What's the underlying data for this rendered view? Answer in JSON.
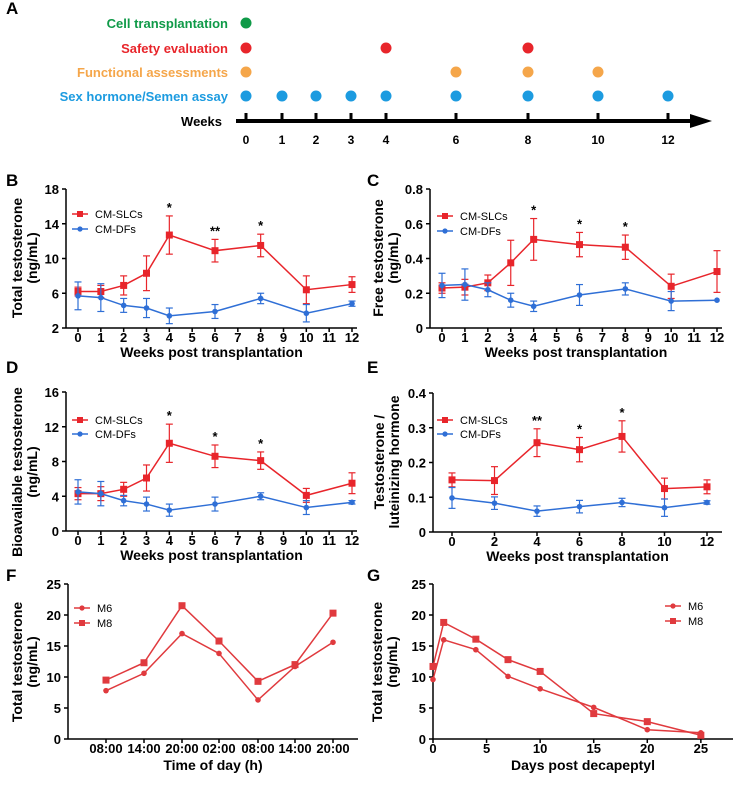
{
  "colors": {
    "red": "#e8252b",
    "blue": "#2f6fd6",
    "green": "#0f9a48",
    "orange": "#f5a64a",
    "cyan": "#1c9be0",
    "pair": "#e03a3e"
  },
  "panel_letters": [
    "A",
    "B",
    "C",
    "D",
    "E",
    "F",
    "G"
  ],
  "timeline": {
    "axis_label": "Weeks",
    "weeks": [
      0,
      1,
      2,
      3,
      4,
      6,
      8,
      10,
      12
    ],
    "rows": [
      {
        "label": "Cell transplantation",
        "color": "#0f9a48",
        "weeks": [
          0
        ]
      },
      {
        "label": "Safety evaluation",
        "color": "#e8252b",
        "weeks": [
          0,
          4,
          8
        ]
      },
      {
        "label": "Functional assessments",
        "color": "#f5a64a",
        "weeks": [
          0,
          6,
          8,
          10
        ]
      },
      {
        "label": "Sex hormone/Semen assay",
        "color": "#1c9be0",
        "weeks": [
          0,
          1,
          2,
          3,
          4,
          6,
          8,
          10,
          12
        ]
      }
    ]
  },
  "chart_data": [
    {
      "id": "B",
      "type": "line",
      "xlabel": "Weeks post transplantation",
      "ylabel": [
        "Total testosterone",
        "(ng/mL)"
      ],
      "xlim": [
        0,
        12
      ],
      "xticks": [
        0,
        1,
        2,
        3,
        4,
        5,
        6,
        7,
        8,
        9,
        10,
        11,
        12
      ],
      "ylim": [
        2,
        18
      ],
      "yticks": [
        2,
        6,
        10,
        14,
        18
      ],
      "x": [
        0,
        1,
        2,
        3,
        4,
        6,
        8,
        10,
        12
      ],
      "series": [
        {
          "name": "CM-SLCs",
          "color": "#e8252b",
          "marker": "square",
          "values": [
            6.2,
            6.2,
            6.9,
            8.3,
            12.7,
            10.9,
            11.5,
            6.4,
            7.0
          ],
          "errors": [
            0.5,
            0.7,
            1.1,
            2.0,
            2.2,
            1.3,
            1.3,
            1.6,
            0.9
          ]
        },
        {
          "name": "CM-DFs",
          "color": "#2f6fd6",
          "marker": "circle",
          "values": [
            5.7,
            5.5,
            4.6,
            4.3,
            3.4,
            3.9,
            5.4,
            3.7,
            4.8
          ],
          "errors": [
            1.6,
            1.6,
            0.8,
            1.1,
            0.9,
            0.8,
            0.6,
            1.0,
            0.3
          ]
        }
      ],
      "annotations": [
        {
          "x": 4,
          "text": "*"
        },
        {
          "x": 6,
          "text": "**"
        },
        {
          "x": 8,
          "text": "*"
        }
      ]
    },
    {
      "id": "C",
      "type": "line",
      "xlabel": "Weeks post transplantation",
      "ylabel": [
        "Free testosterone",
        "(ng/mL)"
      ],
      "xlim": [
        0,
        12
      ],
      "xticks": [
        0,
        1,
        2,
        3,
        4,
        5,
        6,
        7,
        8,
        9,
        10,
        11,
        12
      ],
      "ylim": [
        0,
        0.8
      ],
      "yticks": [
        0,
        0.2,
        0.4,
        0.6,
        0.8
      ],
      "x": [
        0,
        1,
        2,
        3,
        4,
        6,
        8,
        10,
        12
      ],
      "series": [
        {
          "name": "CM-SLCs",
          "color": "#e8252b",
          "marker": "square",
          "values": [
            0.23,
            0.235,
            0.26,
            0.375,
            0.51,
            0.48,
            0.465,
            0.24,
            0.325
          ],
          "errors": [
            0.03,
            0.045,
            0.045,
            0.13,
            0.12,
            0.07,
            0.07,
            0.07,
            0.12
          ]
        },
        {
          "name": "CM-DFs",
          "color": "#2f6fd6",
          "marker": "circle",
          "values": [
            0.245,
            0.25,
            0.22,
            0.16,
            0.125,
            0.19,
            0.225,
            0.155,
            0.16
          ],
          "errors": [
            0.07,
            0.09,
            0.04,
            0.04,
            0.03,
            0.06,
            0.035,
            0.055,
            0
          ]
        }
      ],
      "annotations": [
        {
          "x": 4,
          "text": "*"
        },
        {
          "x": 6,
          "text": "*"
        },
        {
          "x": 8,
          "text": "*"
        }
      ]
    },
    {
      "id": "D",
      "type": "line",
      "xlabel": "Weeks post transplantation",
      "ylabel": [
        "Bioavailable testosterone",
        "(ng/mL)"
      ],
      "xlim": [
        0,
        12
      ],
      "xticks": [
        0,
        1,
        2,
        3,
        4,
        5,
        6,
        7,
        8,
        9,
        10,
        11,
        12
      ],
      "ylim": [
        0,
        16
      ],
      "yticks": [
        0,
        4,
        8,
        12,
        16
      ],
      "x": [
        0,
        1,
        2,
        3,
        4,
        6,
        8,
        10,
        12
      ],
      "series": [
        {
          "name": "CM-SLCs",
          "color": "#e8252b",
          "marker": "square",
          "values": [
            4.3,
            4.3,
            4.8,
            6.1,
            10.1,
            8.6,
            8.1,
            4.1,
            5.5
          ],
          "errors": [
            0.7,
            0.8,
            0.8,
            1.5,
            2.2,
            1.3,
            1.0,
            0.8,
            1.2
          ]
        },
        {
          "name": "CM-DFs",
          "color": "#2f6fd6",
          "marker": "circle",
          "values": [
            4.5,
            4.3,
            3.5,
            3.1,
            2.4,
            3.1,
            4.0,
            2.7,
            3.3
          ],
          "errors": [
            1.4,
            1.4,
            0.6,
            0.8,
            0.7,
            0.8,
            0.4,
            0.8,
            0.2
          ]
        }
      ],
      "annotations": [
        {
          "x": 4,
          "text": "*"
        },
        {
          "x": 6,
          "text": "*"
        },
        {
          "x": 8,
          "text": "*"
        }
      ]
    },
    {
      "id": "E",
      "type": "line",
      "xlabel": "Weeks post transplantation",
      "ylabel": [
        "Testosterone /",
        "luteinizing hormone"
      ],
      "xlim": [
        0,
        12
      ],
      "xticks": [
        0,
        2,
        4,
        6,
        8,
        10,
        12
      ],
      "ylim": [
        0,
        0.4
      ],
      "yticks": [
        0,
        0.1,
        0.2,
        0.3,
        0.4
      ],
      "x": [
        0,
        2,
        4,
        6,
        8,
        10,
        12
      ],
      "series": [
        {
          "name": "CM-SLCs",
          "color": "#e8252b",
          "marker": "square",
          "values": [
            0.15,
            0.148,
            0.257,
            0.237,
            0.275,
            0.125,
            0.13
          ],
          "errors": [
            0.02,
            0.04,
            0.04,
            0.035,
            0.045,
            0.03,
            0.02
          ]
        },
        {
          "name": "CM-DFs",
          "color": "#2f6fd6",
          "marker": "circle",
          "values": [
            0.098,
            0.083,
            0.06,
            0.073,
            0.085,
            0.07,
            0.085
          ],
          "errors": [
            0.03,
            0.018,
            0.015,
            0.018,
            0.012,
            0.025,
            0.005
          ]
        }
      ],
      "annotations": [
        {
          "x": 4,
          "text": "**"
        },
        {
          "x": 6,
          "text": "*"
        },
        {
          "x": 8,
          "text": "*"
        }
      ]
    },
    {
      "id": "F",
      "type": "line",
      "xlabel": "Time of day (h)",
      "ylabel": [
        "Total testosterone",
        "(ng/mL)"
      ],
      "categories": [
        "08:00",
        "14:00",
        "20:00",
        "02:00",
        "08:00",
        "14:00",
        "20:00"
      ],
      "ylim": [
        0,
        25
      ],
      "yticks": [
        0,
        5,
        10,
        15,
        20,
        25
      ],
      "series": [
        {
          "name": "M6",
          "color": "#e03a3e",
          "marker": "circle",
          "values": [
            7.8,
            10.6,
            17.0,
            13.8,
            6.3,
            11.7,
            15.6
          ]
        },
        {
          "name": "M8",
          "color": "#e03a3e",
          "marker": "square",
          "values": [
            9.5,
            12.3,
            21.5,
            15.8,
            9.3,
            12.0,
            20.3
          ]
        }
      ]
    },
    {
      "id": "G",
      "type": "line",
      "xlabel": "Days post decapeptyl",
      "ylabel": [
        "Total testosterone",
        "(ng/mL)"
      ],
      "xlim": [
        0,
        28
      ],
      "xticks": [
        0,
        5,
        10,
        15,
        20,
        25
      ],
      "ylim": [
        0,
        25
      ],
      "yticks": [
        0,
        5,
        10,
        15,
        20,
        25
      ],
      "x": [
        0,
        1,
        4,
        7,
        10,
        15,
        20,
        25
      ],
      "series": [
        {
          "name": "M6",
          "color": "#e03a3e",
          "marker": "circle",
          "values": [
            9.6,
            16.0,
            14.4,
            10.1,
            8.1,
            5.1,
            1.5,
            1.0
          ]
        },
        {
          "name": "M8",
          "color": "#e03a3e",
          "marker": "square",
          "values": [
            11.7,
            18.8,
            16.1,
            12.8,
            10.9,
            4.1,
            2.8,
            0.6
          ]
        }
      ]
    }
  ]
}
